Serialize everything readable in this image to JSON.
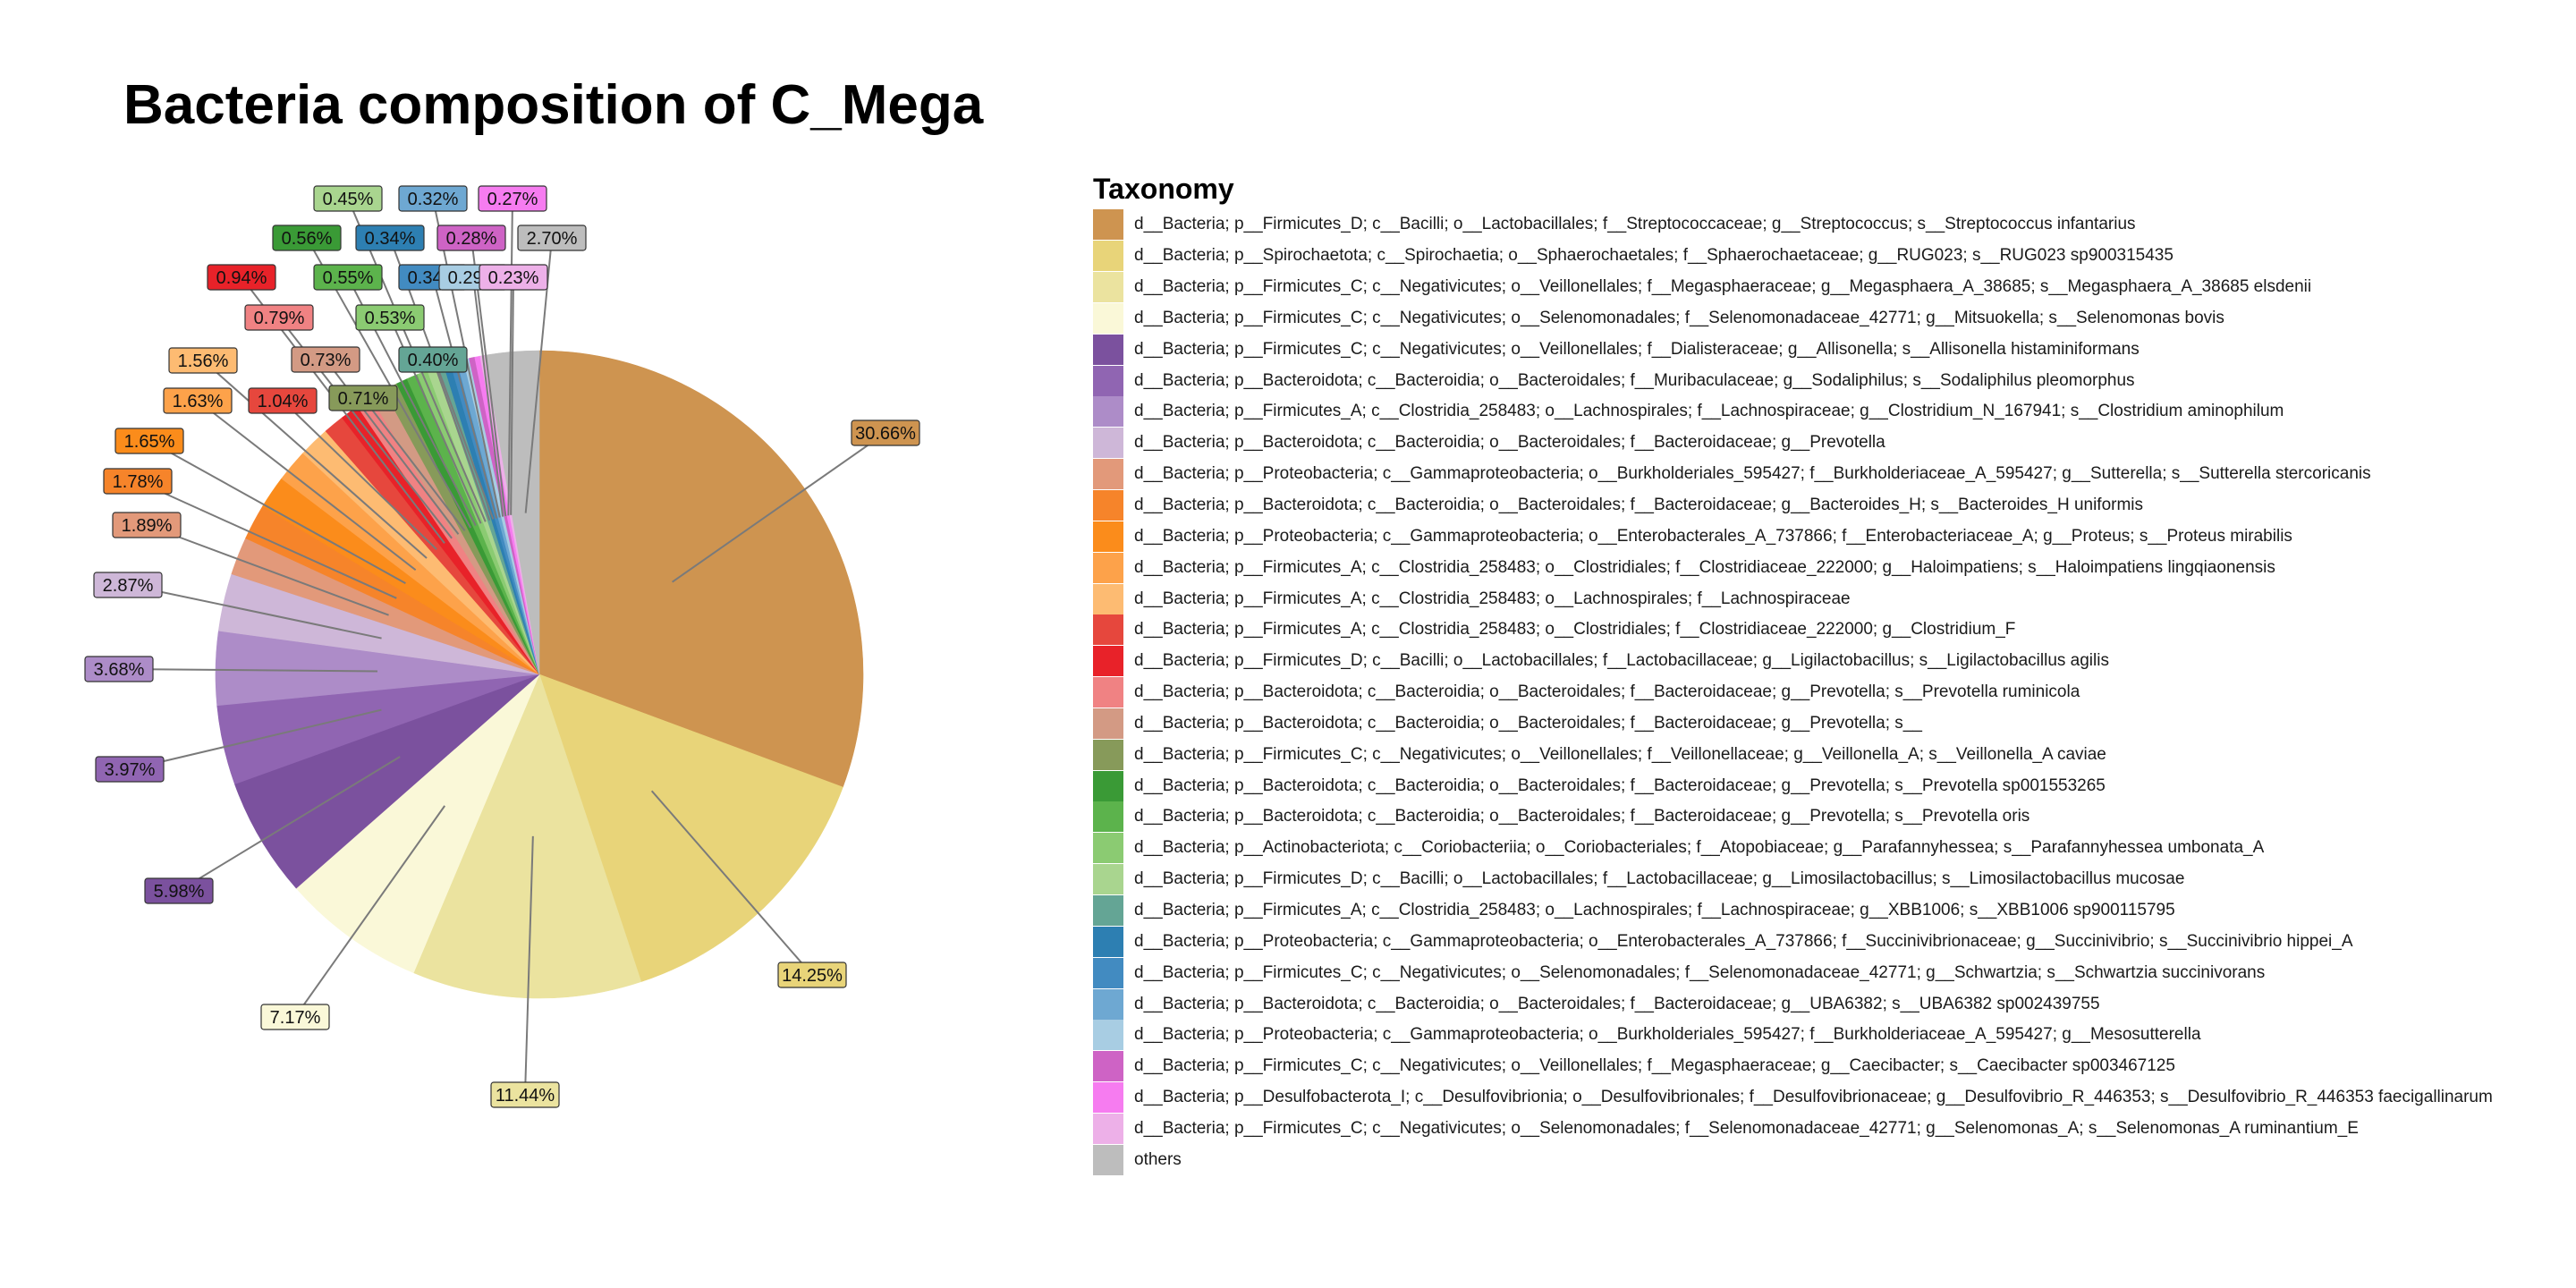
{
  "chart_data": {
    "type": "pie",
    "title": "Bacteria composition of C_Mega",
    "legend_title": "Taxonomy",
    "legend_position": "right",
    "label_format": "percent",
    "slices": [
      {
        "label": "d__Bacteria; p__Firmicutes_D; c__Bacilli; o__Lactobacillales; f__Streptococcaceae; g__Streptococcus; s__Streptococcus infantarius",
        "value": 30.66,
        "display": "30.66%",
        "color": "#CE9450"
      },
      {
        "label": "d__Bacteria; p__Spirochaetota; c__Spirochaetia; o__Sphaerochaetales; f__Sphaerochaetaceae; g__RUG023; s__RUG023 sp900315435",
        "value": 14.25,
        "display": "14.25%",
        "color": "#E8D479"
      },
      {
        "label": "d__Bacteria; p__Firmicutes_C; c__Negativicutes; o__Veillonellales; f__Megasphaeraceae; g__Megasphaera_A_38685; s__Megasphaera_A_38685 elsdenii",
        "value": 11.44,
        "display": "11.44%",
        "color": "#EBE39F"
      },
      {
        "label": "d__Bacteria; p__Firmicutes_C; c__Negativicutes; o__Selenomonadales; f__Selenomonadaceae_42771; g__Mitsuokella; s__Selenomonas bovis",
        "value": 7.17,
        "display": "7.17%",
        "color": "#FAF8D8"
      },
      {
        "label": "d__Bacteria; p__Firmicutes_C; c__Negativicutes; o__Veillonellales; f__Dialisteraceae; g__Allisonella; s__Allisonella histaminiformans",
        "value": 5.98,
        "display": "5.98%",
        "color": "#7B519E"
      },
      {
        "label": "d__Bacteria; p__Bacteroidota; c__Bacteroidia; o__Bacteroidales; f__Muribaculaceae; g__Sodaliphilus; s__Sodaliphilus pleomorphus",
        "value": 3.97,
        "display": "3.97%",
        "color": "#9065B2"
      },
      {
        "label": "d__Bacteria; p__Firmicutes_A; c__Clostridia_258483; o__Lachnospirales; f__Lachnospiraceae; g__Clostridium_N_167941; s__Clostridium aminophilum",
        "value": 3.68,
        "display": "3.68%",
        "color": "#AD8CC8"
      },
      {
        "label": "d__Bacteria; p__Bacteroidota; c__Bacteroidia; o__Bacteroidales; f__Bacteroidaceae; g__Prevotella",
        "value": 2.87,
        "display": "2.87%",
        "color": "#CEB7D8"
      },
      {
        "label": "d__Bacteria; p__Proteobacteria; c__Gammaproteobacteria; o__Burkholderiales_595427; f__Burkholderiaceae_A_595427; g__Sutterella; s__Sutterella stercoricanis",
        "value": 1.89,
        "display": "1.89%",
        "color": "#E2997A"
      },
      {
        "label": "d__Bacteria; p__Bacteroidota; c__Bacteroidia; o__Bacteroidales; f__Bacteroidaceae; g__Bacteroides_H; s__Bacteroides_H uniformis",
        "value": 1.78,
        "display": "1.78%",
        "color": "#F6842A"
      },
      {
        "label": "d__Bacteria; p__Proteobacteria; c__Gammaproteobacteria; o__Enterobacterales_A_737866; f__Enterobacteriaceae_A; g__Proteus; s__Proteus mirabilis",
        "value": 1.65,
        "display": "1.65%",
        "color": "#FB8C1B"
      },
      {
        "label": "d__Bacteria; p__Firmicutes_A; c__Clostridia_258483; o__Clostridiales; f__Clostridiaceae_222000; g__Haloimpatiens; s__Haloimpatiens lingqiaonensis",
        "value": 1.63,
        "display": "1.63%",
        "color": "#FDA24A"
      },
      {
        "label": "d__Bacteria; p__Firmicutes_A; c__Clostridia_258483; o__Lachnospirales; f__Lachnospiraceae",
        "value": 1.56,
        "display": "1.56%",
        "color": "#FDBB72"
      },
      {
        "label": "d__Bacteria; p__Firmicutes_A; c__Clostridia_258483; o__Clostridiales; f__Clostridiaceae_222000; g__Clostridium_F",
        "value": 1.04,
        "display": "1.04%",
        "color": "#E6473D"
      },
      {
        "label": "d__Bacteria; p__Firmicutes_D; c__Bacilli; o__Lactobacillales; f__Lactobacillaceae; g__Ligilactobacillus; s__Ligilactobacillus agilis",
        "value": 0.94,
        "display": "0.94%",
        "color": "#E82229"
      },
      {
        "label": "d__Bacteria; p__Bacteroidota; c__Bacteroidia; o__Bacteroidales; f__Bacteroidaceae; g__Prevotella; s__Prevotella ruminicola",
        "value": 0.79,
        "display": "0.79%",
        "color": "#F08283"
      },
      {
        "label": "d__Bacteria; p__Bacteroidota; c__Bacteroidia; o__Bacteroidales; f__Bacteroidaceae; g__Prevotella; s__",
        "value": 0.73,
        "display": "0.73%",
        "color": "#D39A84"
      },
      {
        "label": "d__Bacteria; p__Firmicutes_C; c__Negativicutes; o__Veillonellales; f__Veillonellaceae; g__Veillonella_A; s__Veillonella_A caviae",
        "value": 0.71,
        "display": "0.71%",
        "color": "#879A5A"
      },
      {
        "label": "d__Bacteria; p__Bacteroidota; c__Bacteroidia; o__Bacteroidales; f__Bacteroidaceae; g__Prevotella; s__Prevotella sp001553265",
        "value": 0.56,
        "display": "0.56%",
        "color": "#3A9A36"
      },
      {
        "label": "d__Bacteria; p__Bacteroidota; c__Bacteroidia; o__Bacteroidales; f__Bacteroidaceae; g__Prevotella; s__Prevotella oris",
        "value": 0.55,
        "display": "0.55%",
        "color": "#5CB34C"
      },
      {
        "label": "d__Bacteria; p__Actinobacteriota; c__Coriobacteriia; o__Coriobacteriales; f__Atopobiaceae; g__Parafannyhessea; s__Parafannyhessea umbonata_A",
        "value": 0.53,
        "display": "0.53%",
        "color": "#8BCB72"
      },
      {
        "label": "d__Bacteria; p__Firmicutes_D; c__Bacilli; o__Lactobacillales; f__Lactobacillaceae; g__Limosilactobacillus; s__Limosilactobacillus mucosae",
        "value": 0.45,
        "display": "0.45%",
        "color": "#A9D58F"
      },
      {
        "label": "d__Bacteria; p__Firmicutes_A; c__Clostridia_258483; o__Lachnospirales; f__Lachnospiraceae; g__XBB1006; s__XBB1006 sp900115795",
        "value": 0.4,
        "display": "0.40%",
        "color": "#64A595"
      },
      {
        "label": "d__Bacteria; p__Proteobacteria; c__Gammaproteobacteria; o__Enterobacterales_A_737866; f__Succinivibrionaceae; g__Succinivibrio; s__Succinivibrio hippei_A",
        "value": 0.34,
        "display": "0.34%",
        "color": "#2D7FB2"
      },
      {
        "label": "d__Bacteria; p__Firmicutes_C; c__Negativicutes; o__Selenomonadales; f__Selenomonadaceae_42771; g__Schwartzia; s__Schwartzia succinivorans",
        "value": 0.34,
        "display": "0.34%",
        "color": "#428BC1"
      },
      {
        "label": "d__Bacteria; p__Bacteroidota; c__Bacteroidia; o__Bacteroidales; f__Bacteroidaceae; g__UBA6382; s__UBA6382 sp002439755",
        "value": 0.32,
        "display": "0.32%",
        "color": "#6EA8D2"
      },
      {
        "label": "d__Bacteria; p__Proteobacteria; c__Gammaproteobacteria; o__Burkholderiales_595427; f__Burkholderiaceae_A_595427; g__Mesosutterella",
        "value": 0.29,
        "display": "0.29%",
        "color": "#A8CDE3"
      },
      {
        "label": "d__Bacteria; p__Firmicutes_C; c__Negativicutes; o__Veillonellales; f__Megasphaeraceae; g__Caecibacter; s__Caecibacter sp003467125",
        "value": 0.28,
        "display": "0.28%",
        "color": "#CE63C5"
      },
      {
        "label": "d__Bacteria; p__Desulfobacterota_I; c__Desulfovibrionia; o__Desulfovibrionales; f__Desulfovibrionaceae; g__Desulfovibrio_R_446353; s__Desulfovibrio_R_446353 faecigallinarum",
        "value": 0.27,
        "display": "0.27%",
        "color": "#F67CF0"
      },
      {
        "label": "d__Bacteria; p__Firmicutes_C; c__Negativicutes; o__Selenomonadales; f__Selenomonadaceae_42771; g__Selenomonas_A; s__Selenomonas_A ruminantium_E",
        "value": 0.23,
        "display": "0.23%",
        "color": "#EDB0E8"
      },
      {
        "label": "others",
        "value": 2.7,
        "display": "2.70%",
        "color": "#BDBDBD"
      }
    ]
  }
}
